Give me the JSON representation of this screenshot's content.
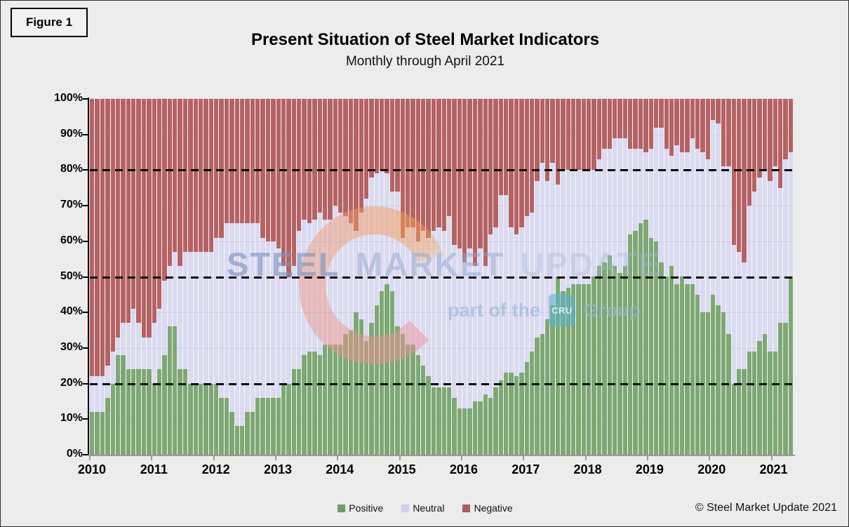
{
  "figure_label": "Figure 1",
  "title": "Present Situation of Steel Market Indicators",
  "subtitle": "Monthly through April 2021",
  "footer_copyright": "© Steel Market Update 2021",
  "watermark": {
    "word1": "STEEL",
    "word2": "MARKET",
    "word3": "UPDATE",
    "tagline": "part of the",
    "logo_box": "CRU",
    "tagline2": "Group",
    "crescent_logo_icon": "smu-crescent-icon"
  },
  "colors": {
    "positive_bar": "#7DA873",
    "neutral_bar": "#DADAF1",
    "negative_bar": "#B56263",
    "legend_positive": "#6F9C64",
    "legend_neutral": "#CECEED",
    "legend_negative": "#B15A5B",
    "page_background": "#ECECEC",
    "dashed_gridline": "#0B0B0B"
  },
  "legend": [
    {
      "label": "Positive",
      "color": "#6F9C64"
    },
    {
      "label": "Neutral",
      "color": "#CECEED"
    },
    {
      "label": "Negative",
      "color": "#B15A5B"
    }
  ],
  "chart_data": {
    "type": "bar",
    "stacked": true,
    "stack_total_pct": 100,
    "title": "Present Situation of Steel Market Indicators",
    "subtitle": "Monthly through April 2021",
    "xlabel": "",
    "ylabel": "",
    "x_start_month": "2010-01",
    "x_end_month": "2021-04",
    "months_count": 136,
    "x_tick_labels": [
      "2010",
      "2011",
      "2012",
      "2013",
      "2014",
      "2015",
      "2016",
      "2017",
      "2018",
      "2019",
      "2020",
      "2021"
    ],
    "y_tick_labels": [
      "0%",
      "10%",
      "20%",
      "30%",
      "40%",
      "50%",
      "60%",
      "70%",
      "80%",
      "90%",
      "100%"
    ],
    "ylim": [
      0,
      100
    ],
    "grid": "faint horizontal every 10%",
    "dashed_reference_lines_pct": [
      20,
      50,
      80
    ],
    "legend_position": "bottom-center",
    "series_order_bottom_to_top": [
      "Positive",
      "Neutral",
      "Negative"
    ],
    "note": "Values are estimated percentages per month. neutral_pct = neutral_top_pct - positive_pct; negative_pct = 100 - neutral_top_pct.",
    "positive_pct": [
      12,
      12,
      12,
      16,
      20,
      28,
      28,
      24,
      24,
      24,
      24,
      24,
      20,
      24,
      28,
      36,
      36,
      24,
      24,
      20,
      20,
      20,
      20,
      20,
      20,
      16,
      16,
      12,
      8,
      8,
      12,
      12,
      16,
      16,
      16,
      16,
      16,
      20,
      20,
      24,
      24,
      28,
      29,
      29,
      28,
      31,
      31,
      31,
      31,
      34,
      35,
      40,
      38,
      32,
      37,
      42,
      46,
      48,
      46,
      36,
      34,
      31,
      31,
      28,
      25,
      22,
      19,
      19,
      19,
      19,
      16,
      13,
      13,
      13,
      15,
      15,
      17,
      16,
      19,
      21,
      23,
      23,
      22,
      23,
      26,
      29,
      33,
      34,
      38,
      42,
      50,
      46,
      47,
      48,
      48,
      48,
      48,
      50,
      53,
      54,
      56,
      53,
      51,
      53,
      62,
      63,
      65,
      66,
      61,
      60,
      54,
      50,
      53,
      48,
      50,
      48,
      48,
      45,
      40,
      40,
      45,
      42,
      40,
      34,
      20,
      24,
      24,
      29,
      29,
      32,
      34,
      29,
      29,
      37,
      37,
      50
    ],
    "neutral_top_pct": [
      22,
      22,
      22,
      25,
      29,
      33,
      37,
      37,
      41,
      37,
      33,
      33,
      37,
      41,
      49,
      53,
      57,
      53,
      57,
      57,
      57,
      57,
      57,
      57,
      61,
      61,
      65,
      65,
      65,
      65,
      65,
      65,
      65,
      61,
      60,
      60,
      58,
      53,
      50,
      53,
      63,
      66,
      65,
      66,
      68,
      66,
      66,
      70,
      68,
      67,
      65,
      63,
      68,
      72,
      78,
      79,
      80,
      79,
      74,
      74,
      61,
      64,
      64,
      60,
      63,
      61,
      63,
      64,
      63,
      67,
      59,
      58,
      54,
      58,
      53,
      58,
      53,
      62,
      64,
      73,
      73,
      64,
      62,
      64,
      67,
      68,
      77,
      82,
      77,
      82,
      76,
      80,
      80,
      80,
      80,
      80,
      80,
      80,
      83,
      86,
      86,
      89,
      89,
      89,
      86,
      86,
      86,
      85,
      86,
      92,
      92,
      86,
      84,
      87,
      85,
      85,
      89,
      86,
      85,
      83,
      94,
      93,
      81,
      81,
      59,
      57,
      54,
      70,
      74,
      78,
      80,
      77,
      81,
      75,
      83,
      85
    ]
  }
}
